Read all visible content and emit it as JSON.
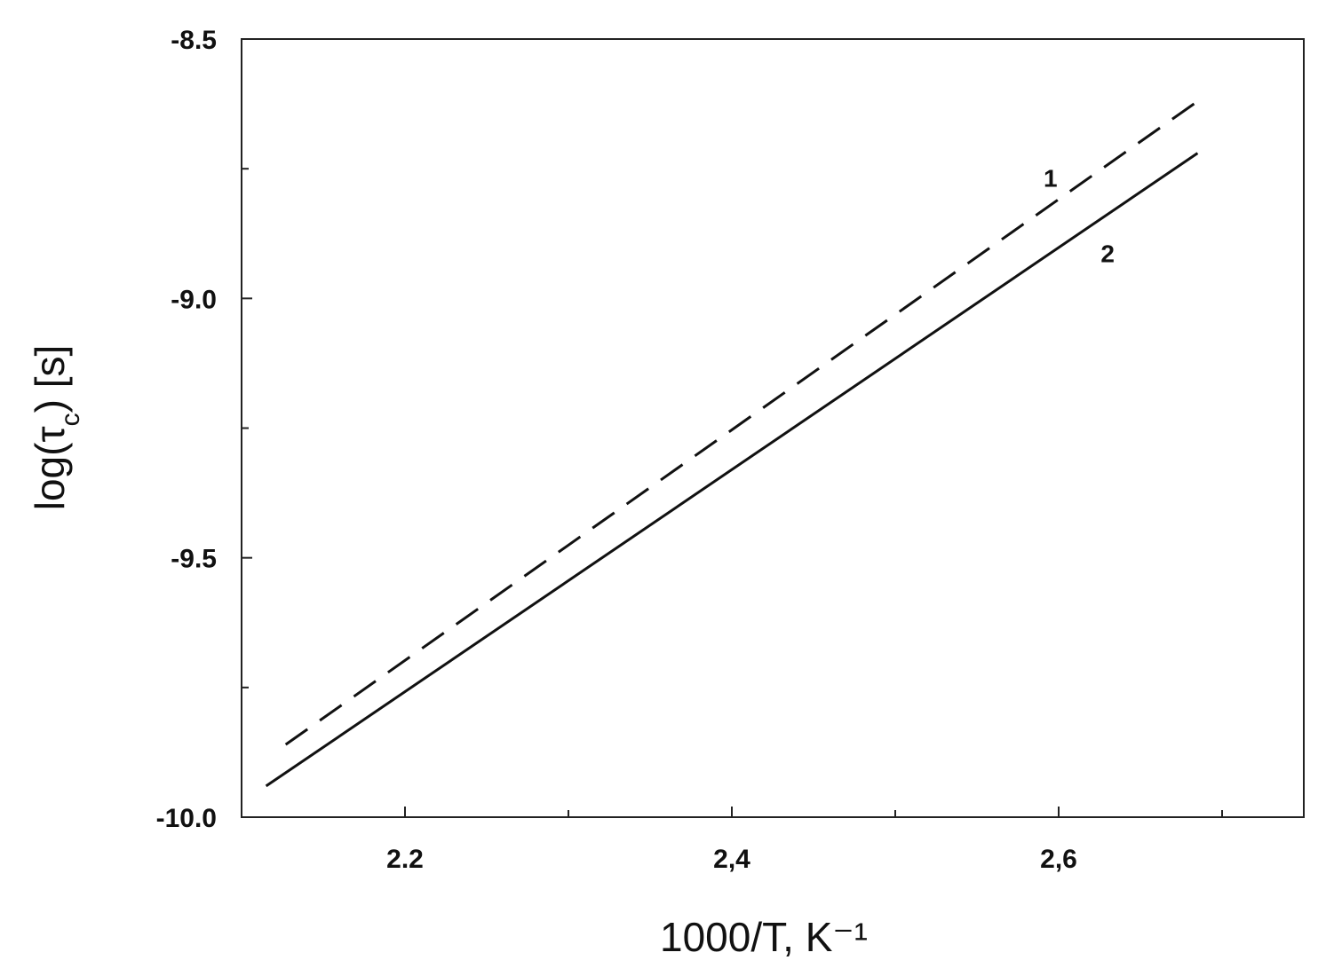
{
  "chart_data": {
    "type": "line",
    "title": "",
    "xlabel": "1000/T, K⁻¹",
    "ylabel_main": "log(τ",
    "ylabel_sub": "c",
    "ylabel_tail": ") [s]",
    "xlim": [
      2.1,
      2.75
    ],
    "ylim": [
      -10.0,
      -8.5
    ],
    "x_ticks": [
      {
        "value": 2.2,
        "label": "2.2"
      },
      {
        "value": 2.4,
        "label": "2,4"
      },
      {
        "value": 2.6,
        "label": "2,6"
      }
    ],
    "x_minor_ticks": [
      2.3,
      2.5,
      2.7
    ],
    "y_ticks": [
      {
        "value": -8.5,
        "label": "-8.5"
      },
      {
        "value": -9.0,
        "label": "-9.0"
      },
      {
        "value": -9.5,
        "label": "-9.5"
      },
      {
        "value": -10.0,
        "label": "-10.0"
      }
    ],
    "y_minor_ticks": [
      -8.75,
      -9.25,
      -9.75
    ],
    "grid": false,
    "legend": "none",
    "series": [
      {
        "label": "1",
        "style": "dashed",
        "color": "#111111",
        "x": [
          2.127,
          2.685
        ],
        "y": [
          -9.86,
          -8.62
        ],
        "label_at": {
          "x": 2.595,
          "y": -8.785
        }
      },
      {
        "label": "2",
        "style": "solid",
        "color": "#111111",
        "x": [
          2.115,
          2.685
        ],
        "y": [
          -9.94,
          -8.72
        ],
        "label_at": {
          "x": 2.63,
          "y": -8.93
        }
      }
    ]
  }
}
